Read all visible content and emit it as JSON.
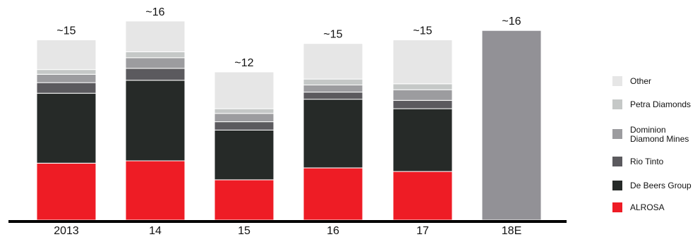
{
  "chart_data": {
    "type": "bar",
    "stacked": true,
    "title": "",
    "xlabel": "",
    "ylabel": "",
    "ylim": [
      0,
      16.5
    ],
    "grid": false,
    "legend_position": "right",
    "categories": [
      "2013",
      "14",
      "15",
      "16",
      "17",
      "18E"
    ],
    "totals": [
      "~15",
      "~16",
      "~12",
      "~15",
      "~15",
      "~16"
    ],
    "series": [
      {
        "name": "ALROSA",
        "color": "#ee1c25",
        "values": [
          4.8,
          5.0,
          3.4,
          4.4,
          4.1,
          0
        ]
      },
      {
        "name": "De Beers Group",
        "color": "#262a28",
        "values": [
          5.9,
          6.8,
          4.2,
          5.8,
          5.3,
          0
        ]
      },
      {
        "name": "Rio Tinto",
        "color": "#5b5a5e",
        "values": [
          0.9,
          1.0,
          0.7,
          0.6,
          0.7,
          0
        ]
      },
      {
        "name": "Dominion\nDiamond Mines",
        "color": "#9c9c9f",
        "values": [
          0.7,
          0.9,
          0.7,
          0.6,
          0.9,
          0
        ]
      },
      {
        "name": "Petra Diamonds",
        "color": "#c5c8c7",
        "values": [
          0.4,
          0.5,
          0.4,
          0.5,
          0.5,
          0
        ]
      },
      {
        "name": "Other",
        "color": "#e6e6e6",
        "values": [
          2.5,
          2.6,
          3.1,
          3.0,
          3.7,
          0
        ]
      },
      {
        "name": "",
        "color": "#929196",
        "values": [
          0,
          0,
          0,
          0,
          0,
          16.0
        ]
      }
    ],
    "legend_order": [
      "Other",
      "Petra Diamonds",
      "Dominion\nDiamond Mines",
      "Rio Tinto",
      "De Beers Group",
      "ALROSA"
    ]
  }
}
